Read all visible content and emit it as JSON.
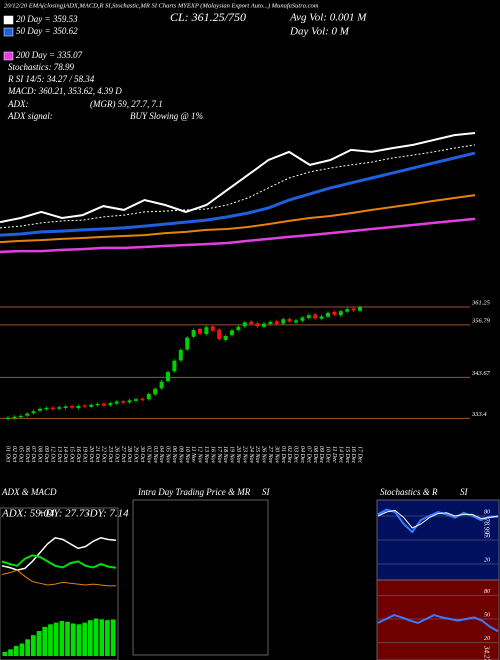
{
  "chart_data": [
    {
      "type": "line",
      "title": "20/12/20 EMA(closing)ADX,MACD,R SI,Stochastic,MR SI Charts MYEXP (Malaysian Export Auto...) MunafaSutra.com",
      "annotations": [
        "CL: 361.25/750",
        "Avg Vol: 0.001 M",
        "Day Vol: 0 M",
        "Stochastics: 78.99",
        "R SI 14/5: 34.27 / 58.34",
        "MACD: 360.21, 353.62, 4.39 D",
        "ADX:",
        "(MGR) 59, 27.7, 7.1",
        "ADX signal:",
        "BUY Slowing @ 1%"
      ],
      "ylim": [
        320,
        370
      ],
      "series": [
        {
          "color": "#ffffff",
          "width": 2,
          "values": [
            334.8,
            336.2,
            338.3,
            336.2,
            337.2,
            340.3,
            339.0,
            342.4,
            340.7,
            338.3,
            340.7,
            345.9,
            351.0,
            356.2,
            359.0,
            354.5,
            356.2,
            359.7,
            359.0,
            360.3,
            361.4,
            363.1,
            364.8,
            365.5
          ]
        },
        {
          "name": "20 Day = 359.53",
          "color": "#ffffff",
          "width": 1,
          "dashed": true,
          "values": [
            332.8,
            333.4,
            334.5,
            335.2,
            335.5,
            336.6,
            337.2,
            338.3,
            338.6,
            339.0,
            339.3,
            340.7,
            343.1,
            346.6,
            350.0,
            352.1,
            353.4,
            354.5,
            355.5,
            356.9,
            357.9,
            359.0,
            360.3,
            361.4
          ]
        },
        {
          "name": "50 Day = 350.62",
          "color": "#1f5fe0",
          "width": 3,
          "values": [
            330.3,
            330.7,
            331.4,
            331.7,
            332.1,
            332.4,
            332.8,
            333.4,
            334.1,
            334.8,
            335.5,
            336.6,
            337.9,
            339.7,
            342.4,
            344.5,
            346.6,
            348.3,
            350.0,
            351.7,
            353.4,
            355.2,
            356.9,
            358.6
          ]
        },
        {
          "color": "#e8820c",
          "width": 2,
          "values": [
            327.9,
            328.3,
            328.6,
            329.0,
            329.3,
            329.7,
            330.0,
            330.3,
            331.0,
            331.4,
            332.1,
            332.4,
            333.1,
            334.1,
            335.2,
            336.2,
            336.9,
            337.9,
            339.0,
            340.0,
            341.0,
            342.1,
            343.1,
            344.1
          ]
        },
        {
          "name": "200 Day = 335.07",
          "color": "#e040e0",
          "width": 2.5,
          "values": [
            324.5,
            324.8,
            324.8,
            325.2,
            325.5,
            325.9,
            325.9,
            326.2,
            326.6,
            326.9,
            327.2,
            327.6,
            328.3,
            329.0,
            329.7,
            330.3,
            331.0,
            331.7,
            332.4,
            333.1,
            333.8,
            334.5,
            335.2,
            335.9
          ]
        }
      ]
    },
    {
      "type": "candlestick",
      "categories": [
        "01 Oct",
        "02 Oct",
        "05 Oct",
        "06 Oct",
        "07 Oct",
        "08 Oct",
        "09 Oct",
        "12 Oct",
        "13 Oct",
        "14 Oct",
        "15 Oct",
        "16 Oct",
        "19 Oct",
        "20 Oct",
        "21 Oct",
        "22 Oct",
        "23 Oct",
        "26 Oct",
        "27 Oct",
        "28 Oct",
        "29 Oct",
        "30 Oct",
        "02 Nov",
        "03 Nov",
        "04 Nov",
        "05 Nov",
        "06 Nov",
        "09 Nov",
        "10 Nov",
        "11 Nov",
        "12 Nov",
        "13 Nov",
        "16 Nov",
        "17 Nov",
        "18 Nov",
        "19 Nov",
        "20 Nov",
        "23 Nov",
        "24 Nov",
        "25 Nov",
        "26 Nov",
        "27 Nov",
        "30 Nov",
        "01 Dec",
        "02 Dec",
        "03 Dec",
        "04 Dec",
        "07 Dec",
        "08 Dec",
        "09 Dec",
        "10 Dec",
        "11 Dec",
        "14 Dec",
        "15 Dec",
        "16 Dec",
        "17 Dec"
      ],
      "open": [
        333.3,
        333.5,
        333.7,
        334.1,
        334.7,
        335.3,
        335.7,
        336.1,
        335.8,
        336.0,
        336.5,
        336.0,
        336.6,
        336.3,
        336.7,
        337.1,
        336.7,
        337.1,
        337.7,
        337.4,
        337.8,
        338.3,
        338.2,
        339.4,
        340.9,
        342.7,
        345.2,
        347.9,
        350.6,
        353.8,
        355.8,
        354.5,
        356.4,
        355.6,
        353.0,
        354.2,
        355.5,
        356.4,
        357.6,
        357.2,
        356.3,
        357.0,
        357.7,
        357.1,
        358.3,
        357.4,
        357.8,
        358.5,
        359.4,
        358.3,
        358.8,
        360.0,
        359.2,
        360.1,
        360.9,
        360.3
      ],
      "high": [
        334.0,
        334.2,
        334.4,
        335.0,
        335.6,
        336.2,
        336.4,
        336.5,
        336.6,
        336.8,
        336.9,
        336.9,
        337.0,
        337.2,
        337.4,
        337.5,
        337.6,
        338.0,
        338.1,
        338.3,
        338.6,
        338.7,
        339.9,
        341.2,
        343.0,
        345.4,
        348.2,
        350.9,
        354.0,
        355.9,
        356.2,
        356.6,
        356.8,
        356.0,
        354.4,
        355.8,
        356.7,
        357.8,
        358.0,
        357.6,
        357.5,
        357.9,
        358.1,
        358.6,
        358.7,
        358.3,
        359.0,
        359.6,
        359.8,
        359.3,
        360.2,
        360.4,
        360.6,
        361.1,
        361.3,
        361.7
      ],
      "low": [
        332.9,
        333.1,
        333.3,
        333.7,
        334.3,
        334.9,
        335.3,
        335.3,
        335.4,
        335.6,
        335.7,
        335.6,
        335.9,
        335.9,
        336.3,
        336.2,
        336.3,
        336.7,
        336.9,
        337.0,
        337.4,
        337.6,
        337.8,
        339.0,
        340.5,
        342.3,
        344.8,
        347.5,
        350.2,
        353.4,
        354.2,
        354.1,
        354.9,
        352.8,
        352.6,
        353.8,
        355.1,
        356.0,
        356.6,
        356.0,
        355.9,
        356.6,
        356.6,
        356.7,
        357.2,
        357.0,
        357.4,
        358.1,
        358.0,
        357.9,
        358.4,
        358.9,
        358.8,
        359.7,
        360.0,
        359.9
      ],
      "close": [
        333.6,
        333.8,
        334.0,
        334.6,
        335.2,
        335.8,
        336.0,
        335.7,
        336.2,
        336.4,
        336.1,
        336.5,
        336.3,
        336.8,
        337.0,
        336.6,
        337.2,
        337.6,
        337.3,
        337.9,
        338.2,
        338.0,
        339.5,
        340.8,
        342.6,
        345.0,
        347.8,
        350.5,
        353.6,
        355.5,
        354.6,
        356.2,
        355.3,
        353.2,
        354.0,
        355.4,
        356.3,
        357.4,
        357.0,
        356.4,
        357.1,
        357.5,
        357.0,
        358.2,
        357.6,
        357.9,
        358.6,
        359.2,
        358.4,
        358.9,
        359.8,
        359.3,
        360.2,
        360.7,
        360.4,
        361.25
      ],
      "up_color": "#00d000",
      "down_color": "#ff1010",
      "level_color": "#a0522d",
      "ylim": [
        328,
        363
      ],
      "yticks": [
        361.25,
        356.79,
        343.67,
        333.4
      ]
    },
    {
      "type": "line",
      "title": "ADX  & MACD",
      "ylim": [
        0,
        80
      ],
      "series": [
        {
          "name": "ADX: 59.04",
          "color": "#ffffff",
          "width": 1.5,
          "values": [
            30,
            28,
            25,
            27,
            35,
            45,
            55,
            62,
            60,
            55,
            50,
            52,
            58,
            62,
            60,
            59.04
          ]
        },
        {
          "name": "+DY: 27.73",
          "color": "#00e000",
          "width": 2,
          "values": [
            35,
            32,
            30,
            38,
            42,
            40,
            35,
            30,
            28,
            33,
            35,
            30,
            28,
            32,
            29,
            27.73
          ]
        },
        {
          "name": "-DY: 7.14",
          "color": "#e8820c",
          "width": 1,
          "values": [
            20,
            22,
            25,
            18,
            12,
            10,
            8,
            9,
            11,
            10,
            9,
            8,
            9,
            8,
            7,
            7.14
          ]
        }
      ]
    },
    {
      "type": "bar",
      "color": "#00e000",
      "ylim": [
        0,
        6
      ],
      "values": [
        0.5,
        0.8,
        1.2,
        1.5,
        2,
        2.5,
        3,
        3.5,
        3.8,
        4,
        4.2,
        4.1,
        3.9,
        3.8,
        4,
        4.3,
        4.5,
        4.4,
        4.3,
        4.39
      ]
    },
    {
      "type": "line",
      "title": "Intra Day Trading Price  & MR",
      "title_right": "SI"
    },
    {
      "type": "line",
      "title": "Stochastics & R",
      "title_right": "SI",
      "ylim": [
        0,
        100
      ],
      "yticks": [
        80,
        50,
        20
      ],
      "annotations": [
        "78.99"
      ],
      "series": [
        {
          "color": "#3a7bff",
          "width": 2,
          "values": [
            82,
            88,
            85,
            70,
            60,
            75,
            80,
            85,
            82,
            78,
            84,
            80,
            75,
            79,
            78.99
          ]
        },
        {
          "color": "#ffffff",
          "width": 1,
          "values": [
            80,
            85,
            87,
            78,
            65,
            70,
            78,
            83,
            84,
            80,
            82,
            82,
            77,
            78,
            80
          ]
        }
      ]
    },
    {
      "type": "line",
      "ylim": [
        0,
        100
      ],
      "yticks": [
        80,
        50,
        20
      ],
      "annotations": [
        "34.27"
      ],
      "series": [
        {
          "color": "#3a7bff",
          "width": 2,
          "values": [
            45,
            50,
            55,
            52,
            48,
            45,
            50,
            55,
            52,
            50,
            48,
            50,
            52,
            48,
            40,
            34.27
          ]
        }
      ]
    }
  ]
}
